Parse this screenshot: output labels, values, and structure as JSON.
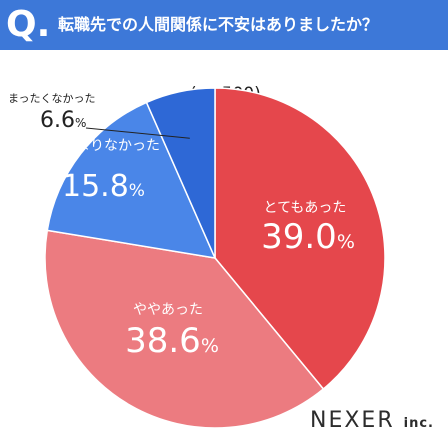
{
  "header": {
    "q_mark": "Q.",
    "question": "転職先での人間関係に不安はありましたか？"
  },
  "sample_size": "(n=500)",
  "brand": {
    "name": "NEXER",
    "suffix": "inc."
  },
  "colors": {
    "header_bg": "#3d78d8",
    "slice_very": "#e5474c",
    "slice_some": "#ec7b80",
    "slice_little": "#4a86e8",
    "slice_none": "#2e68d6"
  },
  "chart_data": {
    "type": "pie",
    "title": "転職先での人間関係に不安はありましたか？",
    "slices": [
      {
        "name": "とてもあった",
        "value": 39.0,
        "label": "39.0%"
      },
      {
        "name": "ややあった",
        "value": 38.6,
        "label": "38.6%"
      },
      {
        "name": "あまりなかった",
        "value": 15.8,
        "label": "15.8%"
      },
      {
        "name": "まったくなかった",
        "value": 6.6,
        "label": "6.6%"
      }
    ]
  }
}
